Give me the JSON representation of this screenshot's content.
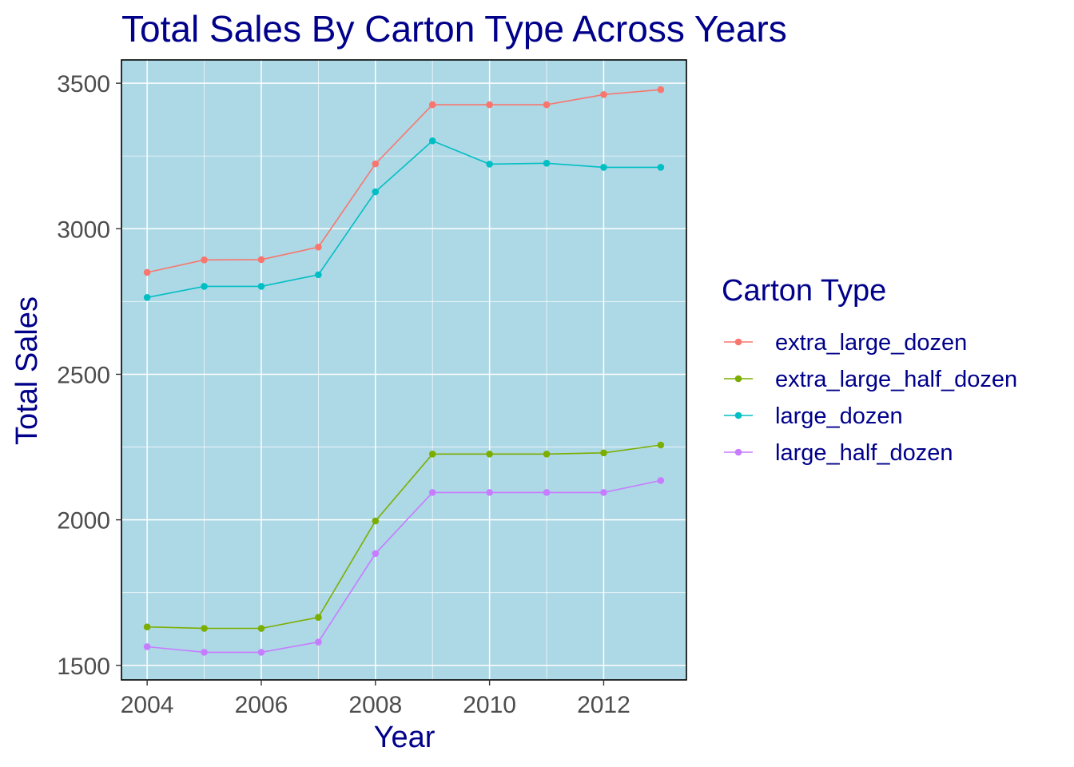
{
  "chart_data": {
    "type": "line",
    "title": "Total Sales By Carton Type Across Years",
    "xlabel": "Year",
    "ylabel": "Total Sales",
    "x": [
      2004,
      2005,
      2006,
      2007,
      2008,
      2009,
      2010,
      2011,
      2012,
      2013
    ],
    "x_ticks": [
      2004,
      2006,
      2008,
      2010,
      2012
    ],
    "x_tick_labels": [
      "2004",
      "2006",
      "2008",
      "2010",
      "2012"
    ],
    "y_ticks": [
      1500,
      2000,
      2500,
      3000,
      3500
    ],
    "y_tick_labels": [
      "1500",
      "2000",
      "2500",
      "3000",
      "3500"
    ],
    "xlim": [
      2003.55,
      2013.45
    ],
    "ylim": [
      1450,
      3580
    ],
    "grid": true,
    "panel_background": "#ADD8E6",
    "grid_color": "#FFFFFF",
    "legend_title": "Carton Type",
    "legend_position": "right",
    "series": [
      {
        "name": "extra_large_dozen",
        "color": "#F8766D",
        "values": [
          2850,
          2893,
          2894,
          2937,
          3223,
          3426,
          3426,
          3426,
          3461,
          3478
        ]
      },
      {
        "name": "extra_large_half_dozen",
        "color": "#7CAE00",
        "values": [
          1632,
          1627,
          1627,
          1665,
          1996,
          2226,
          2226,
          2226,
          2230,
          2257
        ]
      },
      {
        "name": "large_dozen",
        "color": "#00BFC4",
        "values": [
          2764,
          2802,
          2802,
          2842,
          3127,
          3302,
          3222,
          3225,
          3211,
          3211
        ]
      },
      {
        "name": "large_half_dozen",
        "color": "#C77CFF",
        "values": [
          1564,
          1545,
          1545,
          1580,
          1884,
          2094,
          2094,
          2094,
          2094,
          2135
        ]
      }
    ]
  }
}
